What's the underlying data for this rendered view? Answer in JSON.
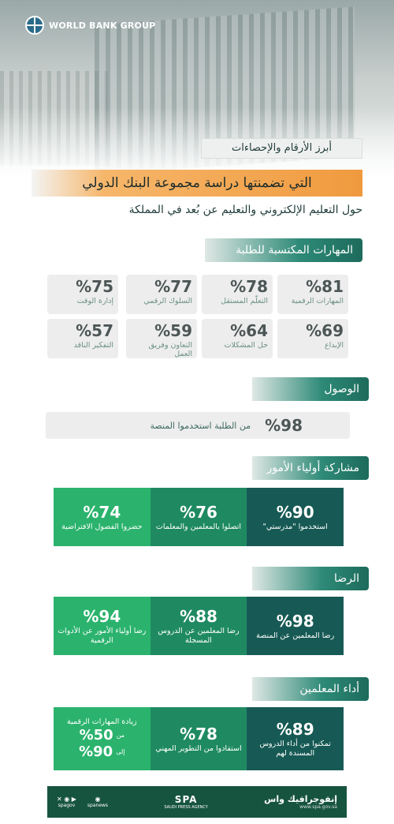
{
  "brand": {
    "logo_text": "WORLD BANK GROUP"
  },
  "header": {
    "title_small": "أبرز الأرقام والإحصاءات",
    "title_main": "التي تضمنتها دراسة مجموعة البنك الدولي",
    "subtitle": "حول التعليم الإلكتروني والتعليم عن بُعد في المملكة"
  },
  "skills": {
    "heading": "المهارات المكتسبة للطلبة",
    "cards": [
      {
        "pct": "%81",
        "label": "المهارات الرقمية"
      },
      {
        "pct": "%78",
        "label": "التعلّم المستقل"
      },
      {
        "pct": "%77",
        "label": "السلوك الرقمي"
      },
      {
        "pct": "%75",
        "label": "إدارة الوقت"
      },
      {
        "pct": "%69",
        "label": "الإبداع"
      },
      {
        "pct": "%64",
        "label": "حل المشكلات"
      },
      {
        "pct": "%59",
        "label": "التعاون وفريق العمل"
      },
      {
        "pct": "%57",
        "label": "التفكير الناقد"
      }
    ]
  },
  "reach": {
    "heading": "الوصول",
    "pct": "%98",
    "label": "من الطلبة استخدموا المنصة"
  },
  "parents": {
    "heading": "مشاركة أولياء الأمور",
    "items": [
      {
        "pct": "%90",
        "label": "استخدموا \"مدرستي\""
      },
      {
        "pct": "%76",
        "label": "اتصلوا بالمعلمين والمعلمات"
      },
      {
        "pct": "%74",
        "label": "حضروا الفصول الافتراضية"
      }
    ]
  },
  "satisfaction": {
    "heading": "الرضا",
    "items": [
      {
        "pct": "%98",
        "label": "رضا المعلمين عن المنصة"
      },
      {
        "pct": "%88",
        "label": "رضا المعلمين عن الدروس المسجلة"
      },
      {
        "pct": "%94",
        "label": "رضا أولياء الأمور عن الأدوات الرقمية"
      }
    ]
  },
  "teachers": {
    "heading": "أداء المعلمين",
    "items": [
      {
        "pct": "%89",
        "label": "تمكنوا من أداء الدروس المسندة لهم"
      },
      {
        "pct": "%78",
        "label": "استفادوا من التطوير المهني"
      }
    ],
    "range": {
      "label": "زيادة المهارات الرقمية",
      "from_word": "من",
      "from_pct": "%50",
      "to_word": "إلى",
      "to_pct": "%90"
    }
  },
  "footer": {
    "brand": "إنفوجرافيك واس",
    "url": "www.spa.gov.sa",
    "logo": "SPA",
    "agency": "SAUDI PRESS AGENCY",
    "social_1": "spagov",
    "social_2": "spanews"
  },
  "colors": {
    "dark": "#175a55",
    "mid": "#1f8a62",
    "light": "#2bb36d",
    "orange": "#f09a3e"
  }
}
